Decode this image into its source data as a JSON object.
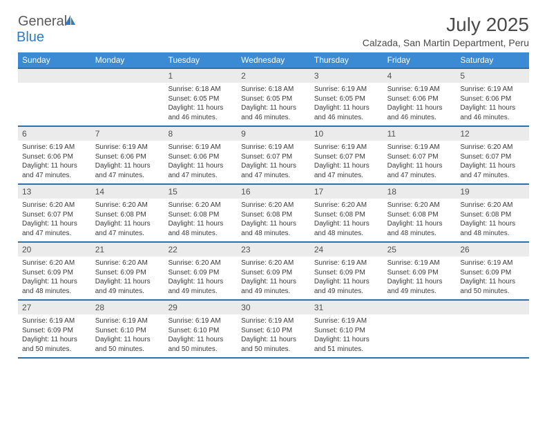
{
  "logo": {
    "general": "General",
    "blue": "Blue"
  },
  "title": "July 2025",
  "location": "Calzada, San Martin Department, Peru",
  "dayNames": [
    "Sunday",
    "Monday",
    "Tuesday",
    "Wednesday",
    "Thursday",
    "Friday",
    "Saturday"
  ],
  "colors": {
    "header_bg": "#3b8bd4",
    "border": "#2f6fa8",
    "daynum_bg": "#ebebeb",
    "logo_blue": "#2f7bc4",
    "text_gray": "#4a4a4a"
  },
  "weeks": [
    [
      null,
      null,
      {
        "n": "1",
        "sunrise": "Sunrise: 6:18 AM",
        "sunset": "Sunset: 6:05 PM",
        "daylight": "Daylight: 11 hours and 46 minutes."
      },
      {
        "n": "2",
        "sunrise": "Sunrise: 6:18 AM",
        "sunset": "Sunset: 6:05 PM",
        "daylight": "Daylight: 11 hours and 46 minutes."
      },
      {
        "n": "3",
        "sunrise": "Sunrise: 6:19 AM",
        "sunset": "Sunset: 6:05 PM",
        "daylight": "Daylight: 11 hours and 46 minutes."
      },
      {
        "n": "4",
        "sunrise": "Sunrise: 6:19 AM",
        "sunset": "Sunset: 6:06 PM",
        "daylight": "Daylight: 11 hours and 46 minutes."
      },
      {
        "n": "5",
        "sunrise": "Sunrise: 6:19 AM",
        "sunset": "Sunset: 6:06 PM",
        "daylight": "Daylight: 11 hours and 46 minutes."
      }
    ],
    [
      {
        "n": "6",
        "sunrise": "Sunrise: 6:19 AM",
        "sunset": "Sunset: 6:06 PM",
        "daylight": "Daylight: 11 hours and 47 minutes."
      },
      {
        "n": "7",
        "sunrise": "Sunrise: 6:19 AM",
        "sunset": "Sunset: 6:06 PM",
        "daylight": "Daylight: 11 hours and 47 minutes."
      },
      {
        "n": "8",
        "sunrise": "Sunrise: 6:19 AM",
        "sunset": "Sunset: 6:06 PM",
        "daylight": "Daylight: 11 hours and 47 minutes."
      },
      {
        "n": "9",
        "sunrise": "Sunrise: 6:19 AM",
        "sunset": "Sunset: 6:07 PM",
        "daylight": "Daylight: 11 hours and 47 minutes."
      },
      {
        "n": "10",
        "sunrise": "Sunrise: 6:19 AM",
        "sunset": "Sunset: 6:07 PM",
        "daylight": "Daylight: 11 hours and 47 minutes."
      },
      {
        "n": "11",
        "sunrise": "Sunrise: 6:19 AM",
        "sunset": "Sunset: 6:07 PM",
        "daylight": "Daylight: 11 hours and 47 minutes."
      },
      {
        "n": "12",
        "sunrise": "Sunrise: 6:20 AM",
        "sunset": "Sunset: 6:07 PM",
        "daylight": "Daylight: 11 hours and 47 minutes."
      }
    ],
    [
      {
        "n": "13",
        "sunrise": "Sunrise: 6:20 AM",
        "sunset": "Sunset: 6:07 PM",
        "daylight": "Daylight: 11 hours and 47 minutes."
      },
      {
        "n": "14",
        "sunrise": "Sunrise: 6:20 AM",
        "sunset": "Sunset: 6:08 PM",
        "daylight": "Daylight: 11 hours and 47 minutes."
      },
      {
        "n": "15",
        "sunrise": "Sunrise: 6:20 AM",
        "sunset": "Sunset: 6:08 PM",
        "daylight": "Daylight: 11 hours and 48 minutes."
      },
      {
        "n": "16",
        "sunrise": "Sunrise: 6:20 AM",
        "sunset": "Sunset: 6:08 PM",
        "daylight": "Daylight: 11 hours and 48 minutes."
      },
      {
        "n": "17",
        "sunrise": "Sunrise: 6:20 AM",
        "sunset": "Sunset: 6:08 PM",
        "daylight": "Daylight: 11 hours and 48 minutes."
      },
      {
        "n": "18",
        "sunrise": "Sunrise: 6:20 AM",
        "sunset": "Sunset: 6:08 PM",
        "daylight": "Daylight: 11 hours and 48 minutes."
      },
      {
        "n": "19",
        "sunrise": "Sunrise: 6:20 AM",
        "sunset": "Sunset: 6:08 PM",
        "daylight": "Daylight: 11 hours and 48 minutes."
      }
    ],
    [
      {
        "n": "20",
        "sunrise": "Sunrise: 6:20 AM",
        "sunset": "Sunset: 6:09 PM",
        "daylight": "Daylight: 11 hours and 48 minutes."
      },
      {
        "n": "21",
        "sunrise": "Sunrise: 6:20 AM",
        "sunset": "Sunset: 6:09 PM",
        "daylight": "Daylight: 11 hours and 49 minutes."
      },
      {
        "n": "22",
        "sunrise": "Sunrise: 6:20 AM",
        "sunset": "Sunset: 6:09 PM",
        "daylight": "Daylight: 11 hours and 49 minutes."
      },
      {
        "n": "23",
        "sunrise": "Sunrise: 6:20 AM",
        "sunset": "Sunset: 6:09 PM",
        "daylight": "Daylight: 11 hours and 49 minutes."
      },
      {
        "n": "24",
        "sunrise": "Sunrise: 6:19 AM",
        "sunset": "Sunset: 6:09 PM",
        "daylight": "Daylight: 11 hours and 49 minutes."
      },
      {
        "n": "25",
        "sunrise": "Sunrise: 6:19 AM",
        "sunset": "Sunset: 6:09 PM",
        "daylight": "Daylight: 11 hours and 49 minutes."
      },
      {
        "n": "26",
        "sunrise": "Sunrise: 6:19 AM",
        "sunset": "Sunset: 6:09 PM",
        "daylight": "Daylight: 11 hours and 50 minutes."
      }
    ],
    [
      {
        "n": "27",
        "sunrise": "Sunrise: 6:19 AM",
        "sunset": "Sunset: 6:09 PM",
        "daylight": "Daylight: 11 hours and 50 minutes."
      },
      {
        "n": "28",
        "sunrise": "Sunrise: 6:19 AM",
        "sunset": "Sunset: 6:10 PM",
        "daylight": "Daylight: 11 hours and 50 minutes."
      },
      {
        "n": "29",
        "sunrise": "Sunrise: 6:19 AM",
        "sunset": "Sunset: 6:10 PM",
        "daylight": "Daylight: 11 hours and 50 minutes."
      },
      {
        "n": "30",
        "sunrise": "Sunrise: 6:19 AM",
        "sunset": "Sunset: 6:10 PM",
        "daylight": "Daylight: 11 hours and 50 minutes."
      },
      {
        "n": "31",
        "sunrise": "Sunrise: 6:19 AM",
        "sunset": "Sunset: 6:10 PM",
        "daylight": "Daylight: 11 hours and 51 minutes."
      },
      null,
      null
    ]
  ]
}
